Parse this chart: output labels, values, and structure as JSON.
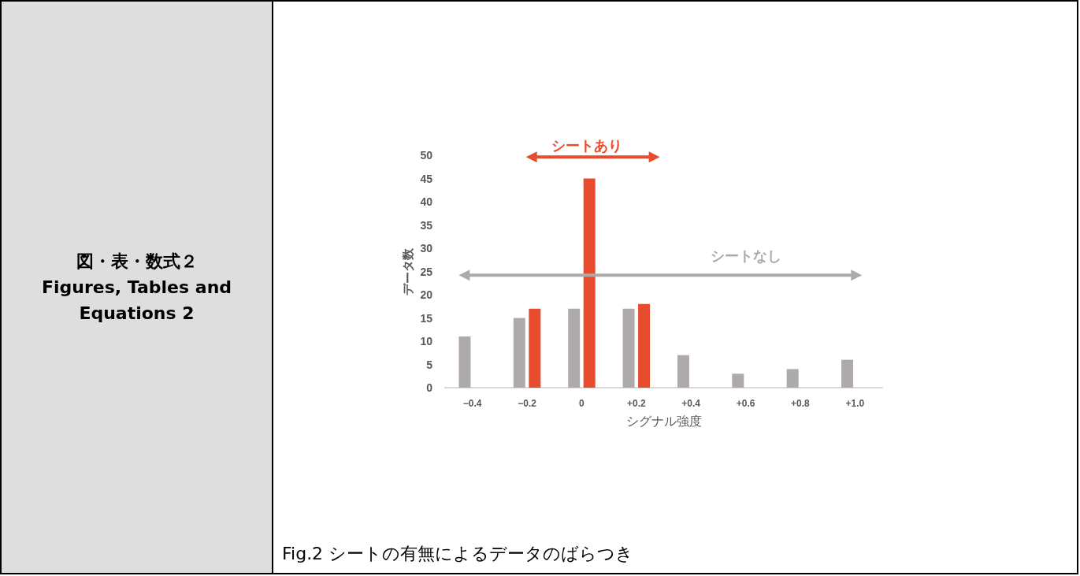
{
  "chart_data": {
    "type": "bar",
    "xlabel": "シグナル強度",
    "ylabel": "データ数",
    "categories": [
      "−0.4",
      "−0.2",
      "0",
      "+0.2",
      "+0.4",
      "+0.6",
      "+0.8",
      "+1.0"
    ],
    "series": [
      {
        "name": "シートなし",
        "color": "#aeaaaa",
        "values": [
          11,
          15,
          17,
          17,
          7,
          3,
          4,
          6
        ]
      },
      {
        "name": "シートあり",
        "color": "#e84c2e",
        "values": [
          null,
          17,
          45,
          18,
          null,
          null,
          null,
          null
        ]
      }
    ],
    "ylim": [
      0,
      50
    ],
    "yticks": [
      0,
      5,
      10,
      15,
      20,
      25,
      30,
      35,
      40,
      45,
      50
    ],
    "grid": false,
    "legend": false,
    "annotations": [
      "図・表・数式２",
      "Figures, Tables and Equations 2",
      "Fig.2 シートの有無によるデータのばらつき"
    ]
  }
}
